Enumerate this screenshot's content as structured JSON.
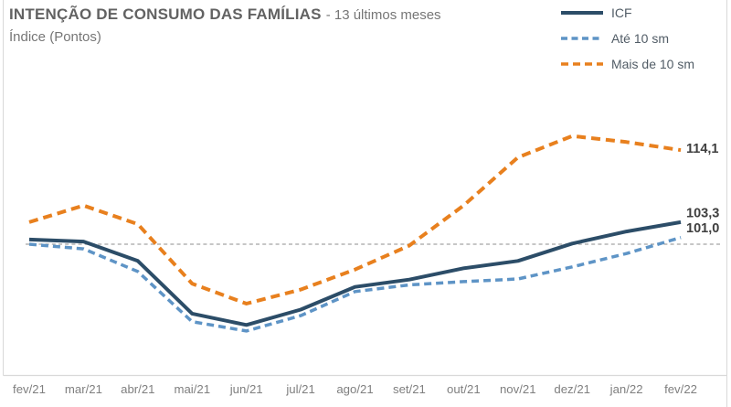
{
  "header": {
    "title": "INTENÇÃO DE CONSUMO DAS FAMÍLIAS",
    "title_suffix": "- 13 últimos meses",
    "unit_label": "Índice (Pontos)"
  },
  "chart_data": {
    "type": "line",
    "title": "INTENÇÃO DE CONSUMO DAS FAMÍLIAS - 13 últimos meses",
    "ylabel": "Índice (Pontos)",
    "xlabel": "",
    "grid": false,
    "legend_position": "top-right",
    "ylim": [
      85,
      118
    ],
    "categories": [
      "fev/21",
      "mar/21",
      "abr/21",
      "mai/21",
      "jun/21",
      "jul/21",
      "ago/21",
      "set/21",
      "out/21",
      "nov/21",
      "dez/21",
      "jan/22",
      "fev/22"
    ],
    "series": [
      {
        "name": "ICF",
        "color": "#2c4d68",
        "style": "solid",
        "values": [
          100.7,
          100.4,
          97.5,
          89.6,
          87.9,
          90.2,
          93.6,
          94.7,
          96.4,
          97.5,
          100.1,
          101.9,
          103.3
        ],
        "end_label": "103,3"
      },
      {
        "name": "Até 10 sm",
        "color": "#5e94c6",
        "style": "dashed",
        "values": [
          100.0,
          99.3,
          95.9,
          88.4,
          87.0,
          89.3,
          92.9,
          93.9,
          94.4,
          94.8,
          96.6,
          98.6,
          101.0
        ],
        "end_label": "101,0"
      },
      {
        "name": "Mais de 10 sm",
        "color": "#e8801e",
        "style": "dashed",
        "values": [
          103.3,
          105.8,
          103.0,
          94.1,
          91.1,
          93.2,
          96.2,
          99.8,
          105.8,
          113.0,
          116.2,
          115.3,
          114.1
        ],
        "end_label": "114,1"
      }
    ],
    "reference_line": {
      "value": 100,
      "style": "dashed",
      "color": "#b3b3b3"
    }
  },
  "colors": {
    "title_text": "#626262",
    "subtitle_text": "#767676",
    "legend_text": "#515c66",
    "axis_labels": "#7f7f7f",
    "frame": "#d9d9d9",
    "end_labels": "#3f3f3f"
  }
}
